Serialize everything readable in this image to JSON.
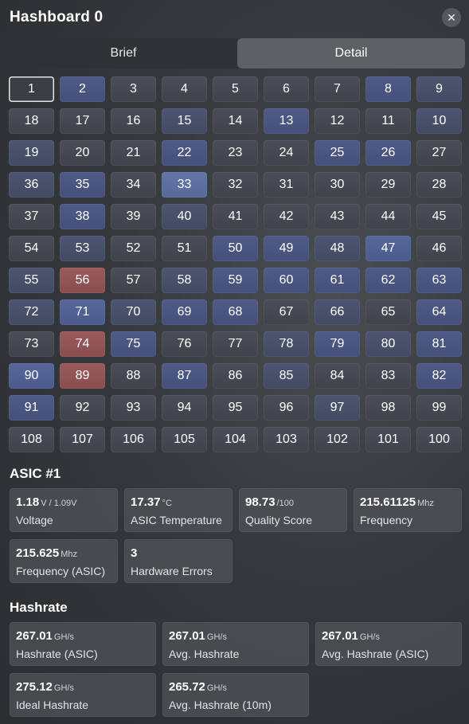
{
  "header": {
    "title": "Hashboard 0",
    "close_glyph": "✕"
  },
  "tabs": [
    {
      "label": "Brief",
      "active": false
    },
    {
      "label": "Detail",
      "active": true
    }
  ],
  "grid": {
    "rows": [
      [
        "1",
        "2",
        "3",
        "4",
        "5",
        "6",
        "7",
        "8",
        "9"
      ],
      [
        "18",
        "17",
        "16",
        "15",
        "14",
        "13",
        "12",
        "11",
        "10"
      ],
      [
        "19",
        "20",
        "21",
        "22",
        "23",
        "24",
        "25",
        "26",
        "27"
      ],
      [
        "36",
        "35",
        "34",
        "33",
        "32",
        "31",
        "30",
        "29",
        "28"
      ],
      [
        "37",
        "38",
        "39",
        "40",
        "41",
        "42",
        "43",
        "44",
        "45"
      ],
      [
        "54",
        "53",
        "52",
        "51",
        "50",
        "49",
        "48",
        "47",
        "46"
      ],
      [
        "55",
        "56",
        "57",
        "58",
        "59",
        "60",
        "61",
        "62",
        "63"
      ],
      [
        "72",
        "71",
        "70",
        "69",
        "68",
        "67",
        "66",
        "65",
        "64"
      ],
      [
        "73",
        "74",
        "75",
        "76",
        "77",
        "78",
        "79",
        "80",
        "81"
      ],
      [
        "90",
        "89",
        "88",
        "87",
        "86",
        "85",
        "84",
        "83",
        "82"
      ],
      [
        "91",
        "92",
        "93",
        "94",
        "95",
        "96",
        "97",
        "98",
        "99"
      ],
      [
        "108",
        "107",
        "106",
        "105",
        "104",
        "103",
        "102",
        "101",
        "100"
      ]
    ],
    "selected": "1",
    "hot": [
      "56",
      "74",
      "89"
    ],
    "shade": {
      "2": "s2",
      "8": "s2",
      "9": "s1",
      "13": "s2",
      "10": "s1",
      "15": "s1",
      "22": "s2",
      "25": "s2",
      "26": "s2",
      "19": "s1",
      "33": "s4",
      "35": "s2",
      "36": "s1",
      "38": "s2",
      "40": "s1",
      "47": "s3",
      "49": "s2",
      "50": "s2",
      "48": "s1",
      "53": "s1",
      "59": "s2",
      "60": "s2",
      "61": "s2",
      "62": "s2",
      "63": "s2",
      "55": "s1",
      "58": "s1",
      "71": "s3",
      "68": "s2",
      "69": "s2",
      "64": "s2",
      "66": "s1",
      "70": "s1",
      "72": "s1",
      "75": "s2",
      "79": "s2",
      "81": "s2",
      "78": "s1",
      "80": "s1",
      "90": "s3",
      "87": "s2",
      "82": "s2",
      "85": "s1",
      "91": "s2",
      "97": "s1"
    },
    "colors": {
      "base": "#444852",
      "blue": "#4f5b86",
      "hot": "#8f5254",
      "selected_border": "#e6e6e6"
    }
  },
  "asic": {
    "title": "ASIC #1",
    "cards": [
      {
        "value": "1.18",
        "unit": "V / 1.09V",
        "label": "Voltage"
      },
      {
        "value": "17.37",
        "unit": "°C",
        "label": "ASIC Temperature"
      },
      {
        "value": "98.73",
        "unit": "/100",
        "label": "Quality Score"
      },
      {
        "value": "215.61125",
        "unit": "Mhz",
        "label": "Frequency"
      },
      {
        "value": "215.625",
        "unit": "Mhz",
        "label": "Frequency (ASIC)"
      },
      {
        "value": "3",
        "unit": "",
        "label": "Hardware Errors"
      }
    ]
  },
  "hashrate": {
    "title": "Hashrate",
    "cards": [
      {
        "value": "267.01",
        "unit": "GH/s",
        "label": "Hashrate (ASIC)"
      },
      {
        "value": "267.01",
        "unit": "GH/s",
        "label": "Avg. Hashrate"
      },
      {
        "value": "267.01",
        "unit": "GH/s",
        "label": "Avg. Hashrate (ASIC)"
      },
      {
        "value": "275.12",
        "unit": "GH/s",
        "label": "Ideal Hashrate"
      },
      {
        "value": "265.72",
        "unit": "GH/s",
        "label": "Avg. Hashrate (10m)"
      }
    ]
  }
}
